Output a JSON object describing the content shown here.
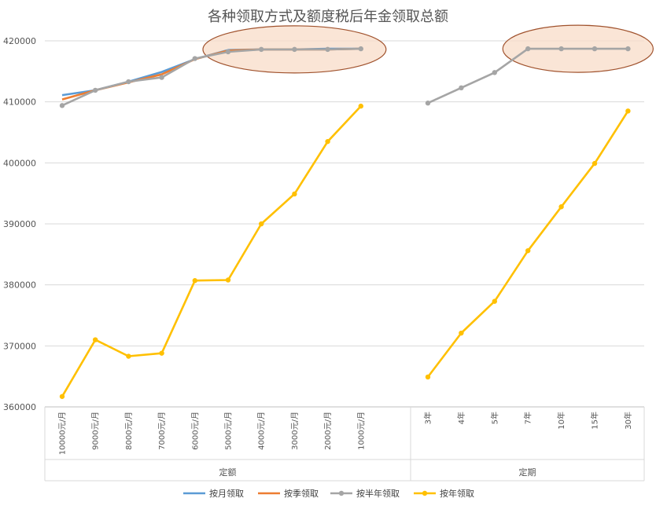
{
  "chart_data": {
    "type": "line",
    "title": "各种领取方式及额度税后年金领取总额",
    "ylim": [
      360000,
      420000
    ],
    "yticks": [
      360000,
      370000,
      380000,
      390000,
      400000,
      410000,
      420000
    ],
    "grid": true,
    "legend_position": "bottom",
    "groups": [
      {
        "name": "定额",
        "categories": [
          "10000元/月",
          "9000元/月",
          "8000元/月",
          "7000元/月",
          "6000元/月",
          "5000元/月",
          "4000元/月",
          "3000元/月",
          "2000元/月",
          "1000元/月"
        ],
        "series": [
          {
            "name": "按月领取",
            "values": [
              411100,
              411900,
              413300,
              414900,
              417000,
              418500,
              418600,
              418600,
              418700,
              418700
            ]
          },
          {
            "name": "按季领取",
            "values": [
              410400,
              411900,
              413200,
              414500,
              417000,
              418400,
              418600,
              418600,
              418600,
              418700
            ]
          },
          {
            "name": "按半年领取",
            "values": [
              409400,
              411900,
              413300,
              414000,
              417100,
              418200,
              418600,
              418600,
              418600,
              418700
            ]
          },
          {
            "name": "按年领取",
            "values": [
              361700,
              371000,
              368300,
              368800,
              380700,
              380800,
              390000,
              394900,
              403500,
              409300
            ]
          }
        ]
      },
      {
        "name": "定期",
        "categories": [
          "3年",
          "4年",
          "5年",
          "7年",
          "10年",
          "15年",
          "30年"
        ],
        "series": [
          {
            "name": "按半年领取",
            "values": [
              409800,
              412300,
              414800,
              418700,
              418700,
              418700,
              418700
            ]
          },
          {
            "name": "按年领取",
            "values": [
              364900,
              372100,
              377300,
              385600,
              392800,
              399900,
              408500
            ]
          }
        ]
      }
    ],
    "legend": [
      {
        "name": "按月领取",
        "color": "#5B9BD5"
      },
      {
        "name": "按季领取",
        "color": "#ED7D31"
      },
      {
        "name": "按半年领取",
        "color": "#A5A5A5"
      },
      {
        "name": "按年领取",
        "color": "#FFC000"
      }
    ],
    "colors": {
      "按月领取": "#5B9BD5",
      "按季领取": "#ED7D31",
      "按半年领取": "#A5A5A5",
      "按年领取": "#FFC000",
      "gridline": "#D9D9D9",
      "axis": "#BFBFBF",
      "highlight_fill": "#F8DCC8",
      "highlight_stroke": "#A0522D"
    }
  }
}
